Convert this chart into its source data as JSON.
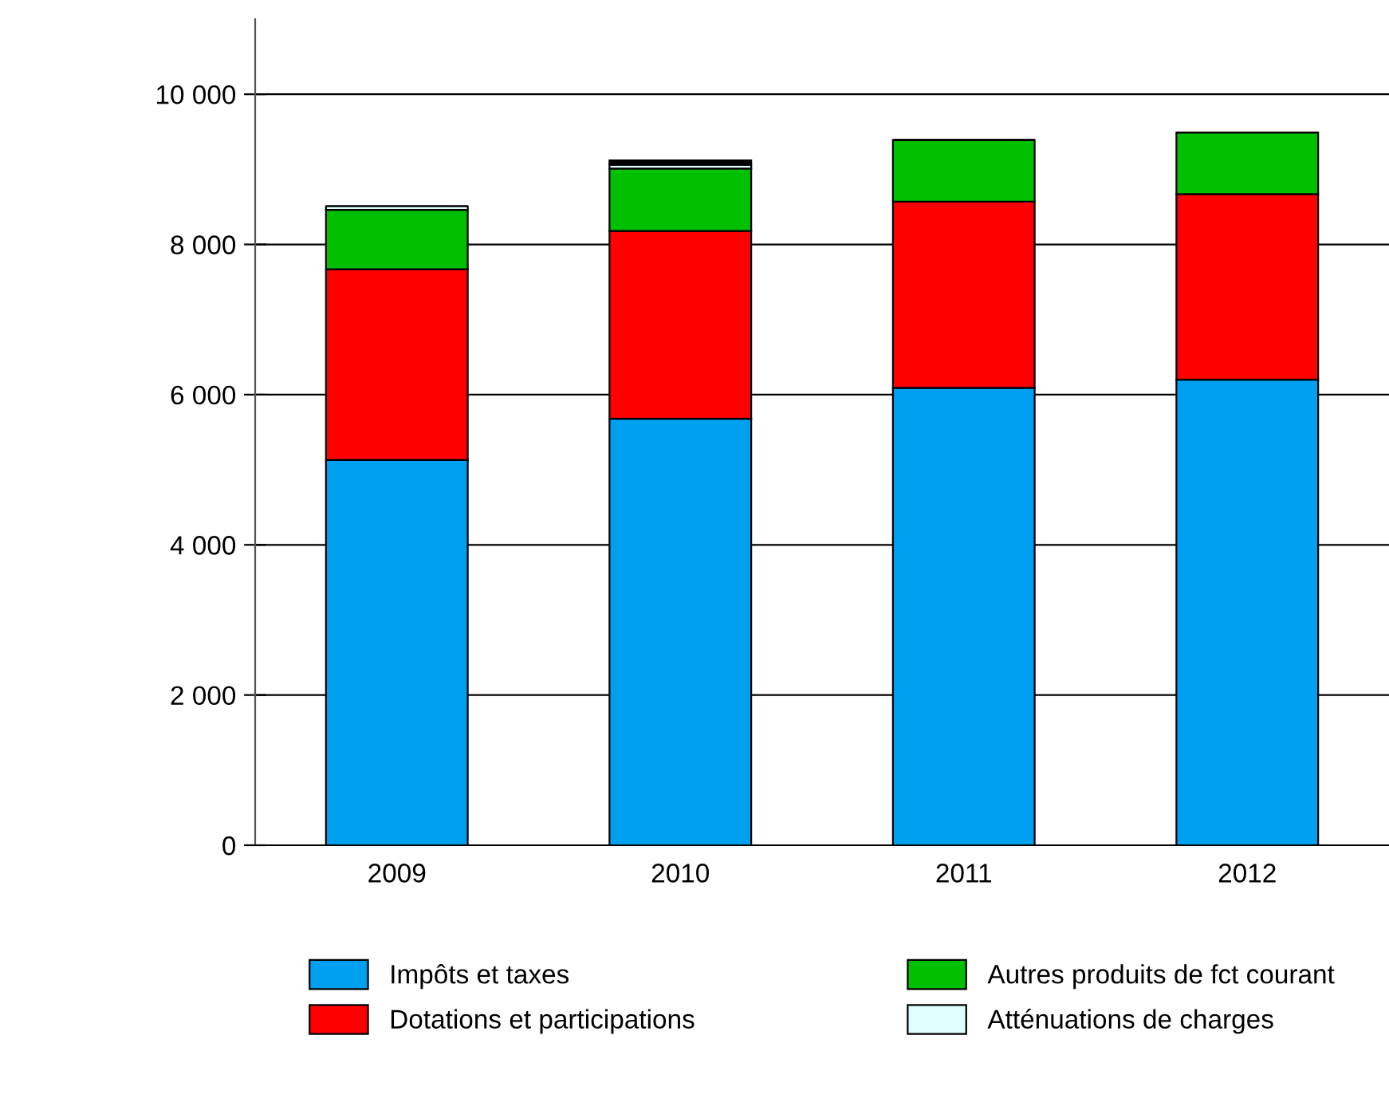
{
  "chart_data": {
    "type": "bar",
    "stacked": true,
    "categories": [
      "2009",
      "2010",
      "2011",
      "2012"
    ],
    "series": [
      {
        "name": "Impôts et taxes",
        "color": "#00a0f0",
        "values": [
          5130,
          5680,
          6090,
          6200
        ]
      },
      {
        "name": "Dotations et participations",
        "color": "#ff0000",
        "values": [
          2540,
          2500,
          2480,
          2470
        ]
      },
      {
        "name": "Autres produits de fct courant",
        "color": "#00c000",
        "values": [
          790,
          830,
          820,
          820
        ]
      },
      {
        "name": "Atténuations de charges",
        "color": "#e0ffff",
        "values": [
          50,
          50,
          null,
          null
        ]
      },
      {
        "color": "#000000",
        "values": [
          0,
          60,
          0,
          0
        ]
      }
    ],
    "ylim": [
      0,
      11000
    ],
    "yticks": [
      {
        "value": 0,
        "label": "0"
      },
      {
        "value": 2000,
        "label": "2 000"
      },
      {
        "value": 4000,
        "label": "4 000"
      },
      {
        "value": 6000,
        "label": "6 000"
      },
      {
        "value": 8000,
        "label": "8 000"
      },
      {
        "value": 10000,
        "label": "10 000"
      }
    ],
    "grid": "y",
    "legend": "bottom"
  }
}
